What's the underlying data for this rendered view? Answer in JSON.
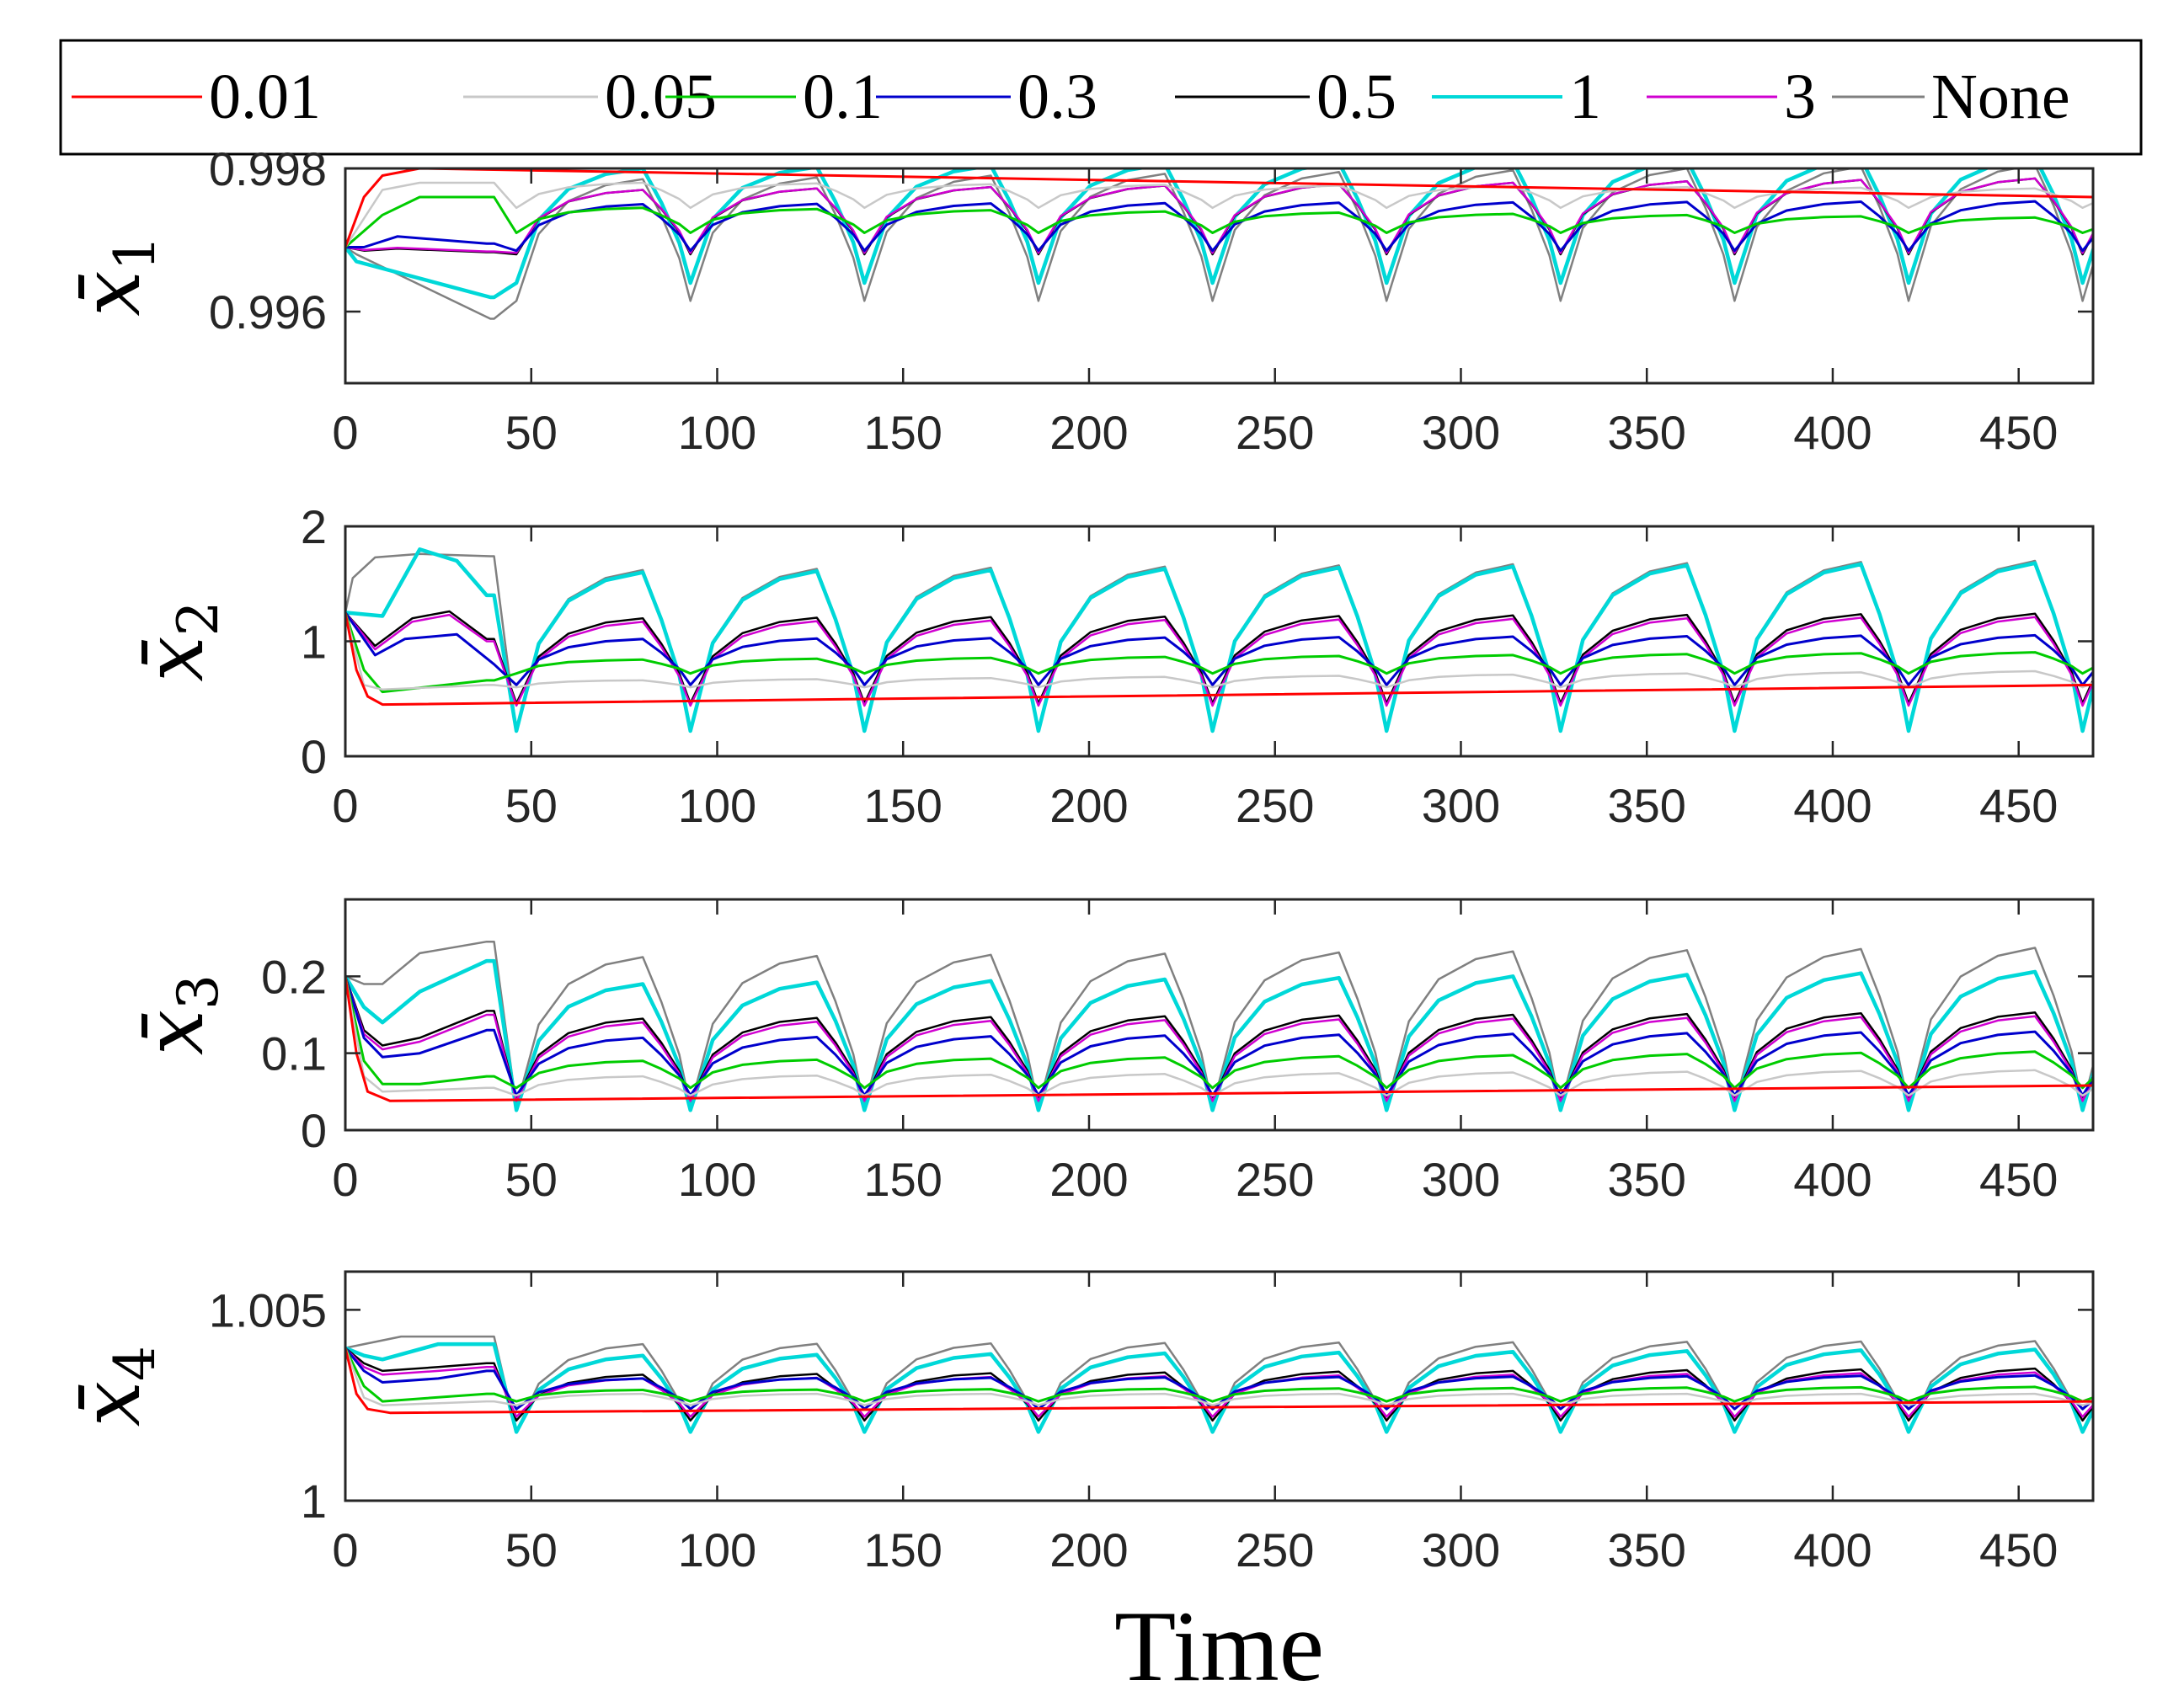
{
  "chart_data": {
    "type": "line",
    "xlabel": "Time",
    "xlim": [
      0,
      470
    ],
    "x_ticks": [
      0,
      50,
      100,
      150,
      200,
      250,
      300,
      350,
      400,
      450
    ],
    "period": 46.8,
    "legend": {
      "placement": "top",
      "entries": [
        {
          "label": "0.01",
          "color": "#ff0000"
        },
        {
          "label": "0.05",
          "color": "#c8c8c8"
        },
        {
          "label": "0.1",
          "color": "#00cc00"
        },
        {
          "label": "0.3",
          "color": "#0000cc"
        },
        {
          "label": "0.5",
          "color": "#000000"
        },
        {
          "label": "1",
          "color": "#00d8d8"
        },
        {
          "label": "3",
          "color": "#d000d0"
        },
        {
          "label": "None",
          "color": "#808080"
        }
      ]
    },
    "subplots": [
      {
        "ylabel": "x̄",
        "ylabel_sub": "1",
        "ylim": [
          0.995,
          0.998
        ],
        "y_ticks": [
          0.996,
          0.998
        ],
        "y_tick_labels": [
          "0.996",
          "0.998"
        ],
        "series": [
          {
            "name": "None",
            "color": "#808080",
            "width": 2.5,
            "initial": 0.9969,
            "transient": {
              "t": [
                3,
                39
              ],
              "y": [
                0.9968,
                0.9959
              ]
            },
            "low": [
              0.99615
            ],
            "high": [
              0.99785,
              0.9981,
              0.9981
            ]
          },
          {
            "name": "1",
            "color": "#00d8d8",
            "width": 4.5,
            "initial": 0.9969,
            "transient": {
              "t": [
                3,
                39
              ],
              "y": [
                0.9967,
                0.9962
              ]
            },
            "low": [
              0.9964
            ],
            "high": [
              0.998,
              0.9982
            ]
          },
          {
            "name": "0.5",
            "color": "#000000",
            "width": 2.5,
            "initial": 0.9969,
            "transient": {
              "t": [
                5,
                14,
                38
              ],
              "y": [
                0.99685,
                0.99688,
                0.99683
              ]
            },
            "low": [
              0.9968
            ],
            "high": [
              0.9977,
              0.9979
            ]
          },
          {
            "name": "3",
            "color": "#d000d0",
            "width": 2.5,
            "initial": 0.9969,
            "transient": {
              "t": [
                5,
                14,
                38
              ],
              "y": [
                0.99686,
                0.99689,
                0.99684
              ]
            },
            "low": [
              0.99682
            ],
            "high": [
              0.9977,
              0.9979
            ]
          },
          {
            "name": "0.3",
            "color": "#0000cc",
            "width": 3,
            "initial": 0.9969,
            "transient": {
              "t": [
                5,
                14,
                38
              ],
              "y": [
                0.9969,
                0.99705,
                0.99695
              ]
            },
            "low": [
              0.99685
            ],
            "high": [
              0.9975,
              0.99755
            ]
          },
          {
            "name": "0.1",
            "color": "#00cc00",
            "width": 3,
            "initial": 0.9969,
            "transient": {
              "t": [
                10,
                20,
                38
              ],
              "y": [
                0.99735,
                0.9976,
                0.9976
              ]
            },
            "low": [
              0.9971
            ],
            "high": [
              0.99745,
              0.99728
            ]
          },
          {
            "name": "0.05",
            "color": "#c8c8c8",
            "width": 2.5,
            "initial": 0.9969,
            "transient": {
              "t": [
                10,
                20,
                38
              ],
              "y": [
                0.9977,
                0.9978,
                0.9978
              ]
            },
            "low": [
              0.99745
            ],
            "high": [
              0.9978,
              0.9977
            ]
          },
          {
            "name": "0.01",
            "color": "#ff0000",
            "width": 3,
            "initial": 0.9969,
            "transient": {
              "t": [
                5,
                10,
                20
              ],
              "y": [
                0.9976,
                0.9979,
                0.998
              ]
            },
            "steady": [
              0.998,
              0.9976
            ]
          }
        ]
      },
      {
        "ylabel": "x̄",
        "ylabel_sub": "2",
        "ylim": [
          0,
          2
        ],
        "y_ticks": [
          0,
          1,
          2
        ],
        "y_tick_labels": [
          "0",
          "1",
          "2"
        ],
        "series": [
          {
            "name": "None",
            "color": "#808080",
            "width": 2.5,
            "initial": 1.25,
            "transient": {
              "t": [
                2,
                8,
                20,
                39
              ],
              "y": [
                1.55,
                1.73,
                1.76,
                1.74
              ]
            },
            "low": [
              0.22
            ],
            "high": [
              1.62,
              1.72
            ]
          },
          {
            "name": "1",
            "color": "#00d8d8",
            "width": 4.5,
            "initial": 1.25,
            "transient": {
              "t": [
                10,
                20,
                30,
                38
              ],
              "y": [
                1.22,
                1.8,
                1.7,
                1.4
              ]
            },
            "low": [
              0.22
            ],
            "high": [
              1.6,
              1.7
            ]
          },
          {
            "name": "0.5",
            "color": "#000000",
            "width": 2.5,
            "initial": 1.25,
            "transient": {
              "t": [
                8,
                18,
                28,
                38
              ],
              "y": [
                0.96,
                1.2,
                1.26,
                1.02
              ]
            },
            "low": [
              0.46
            ],
            "high": [
              1.2,
              1.25
            ]
          },
          {
            "name": "3",
            "color": "#d000d0",
            "width": 2.5,
            "initial": 1.25,
            "transient": {
              "t": [
                8,
                18,
                28,
                38
              ],
              "y": [
                0.93,
                1.17,
                1.23,
                1.0
              ]
            },
            "low": [
              0.44
            ],
            "high": [
              1.17,
              1.22
            ]
          },
          {
            "name": "0.3",
            "color": "#0000cc",
            "width": 3,
            "initial": 1.25,
            "transient": {
              "t": [
                8,
                16,
                30,
                40
              ],
              "y": [
                0.88,
                1.02,
                1.06,
                0.8
              ]
            },
            "low": [
              0.62
            ],
            "high": [
              1.02,
              1.06
            ]
          },
          {
            "name": "0.1",
            "color": "#00cc00",
            "width": 3,
            "initial": 1.25,
            "transient": {
              "t": [
                5,
                10,
                38
              ],
              "y": [
                0.75,
                0.56,
                0.66
              ]
            },
            "low": [
              0.72
            ],
            "high": [
              0.84,
              0.92
            ]
          },
          {
            "name": "0.05",
            "color": "#c8c8c8",
            "width": 2.5,
            "initial": 1.25,
            "transient": {
              "t": [
                5,
                10,
                38
              ],
              "y": [
                0.62,
                0.58,
                0.62
              ]
            },
            "low": [
              0.6
            ],
            "high": [
              0.66,
              0.76
            ]
          },
          {
            "name": "0.01",
            "color": "#ff0000",
            "width": 3,
            "initial": 1.25,
            "transient": {
              "t": [
                3,
                6,
                10
              ],
              "y": [
                0.75,
                0.52,
                0.45
              ]
            },
            "steady": [
              0.45,
              0.62
            ]
          }
        ]
      },
      {
        "ylabel": "x̄",
        "ylabel_sub": "3",
        "ylim": [
          0,
          0.3
        ],
        "y_ticks": [
          0,
          0.1,
          0.2
        ],
        "y_tick_labels": [
          "0",
          "0.1",
          "0.2"
        ],
        "series": [
          {
            "name": "None",
            "color": "#808080",
            "width": 2.5,
            "initial": 0.2,
            "transient": {
              "t": [
                5,
                10,
                20,
                38
              ],
              "y": [
                0.19,
                0.19,
                0.23,
                0.245
              ]
            },
            "low": [
              0.03
            ],
            "high": [
              0.225,
              0.24
            ]
          },
          {
            "name": "1",
            "color": "#00d8d8",
            "width": 4.5,
            "initial": 0.2,
            "transient": {
              "t": [
                5,
                10,
                20,
                38
              ],
              "y": [
                0.16,
                0.14,
                0.18,
                0.22
              ]
            },
            "low": [
              0.026
            ],
            "high": [
              0.19,
              0.21
            ]
          },
          {
            "name": "0.5",
            "color": "#000000",
            "width": 2.5,
            "initial": 0.2,
            "transient": {
              "t": [
                5,
                10,
                20,
                38
              ],
              "y": [
                0.13,
                0.11,
                0.12,
                0.155
              ]
            },
            "low": [
              0.04
            ],
            "high": [
              0.145,
              0.155
            ]
          },
          {
            "name": "3",
            "color": "#d000d0",
            "width": 2.5,
            "initial": 0.2,
            "transient": {
              "t": [
                5,
                10,
                20,
                38
              ],
              "y": [
                0.125,
                0.105,
                0.115,
                0.15
              ]
            },
            "low": [
              0.038
            ],
            "high": [
              0.14,
              0.15
            ]
          },
          {
            "name": "0.3",
            "color": "#0000cc",
            "width": 3,
            "initial": 0.2,
            "transient": {
              "t": [
                5,
                10,
                20,
                38
              ],
              "y": [
                0.12,
                0.095,
                0.1,
                0.13
              ]
            },
            "low": [
              0.045
            ],
            "high": [
              0.12,
              0.13
            ]
          },
          {
            "name": "0.1",
            "color": "#00cc00",
            "width": 3,
            "initial": 0.2,
            "transient": {
              "t": [
                5,
                10,
                20,
                38
              ],
              "y": [
                0.09,
                0.06,
                0.06,
                0.07
              ]
            },
            "low": [
              0.055
            ],
            "high": [
              0.09,
              0.105
            ]
          },
          {
            "name": "0.05",
            "color": "#c8c8c8",
            "width": 2.5,
            "initial": 0.2,
            "transient": {
              "t": [
                5,
                10,
                38
              ],
              "y": [
                0.07,
                0.05,
                0.055
              ]
            },
            "low": [
              0.045
            ],
            "high": [
              0.07,
              0.08
            ]
          },
          {
            "name": "0.01",
            "color": "#ff0000",
            "width": 3,
            "initial": 0.2,
            "transient": {
              "t": [
                3,
                6,
                12
              ],
              "y": [
                0.1,
                0.05,
                0.038
              ]
            },
            "steady": [
              0.038,
              0.058
            ]
          }
        ]
      },
      {
        "ylabel": "x̄",
        "ylabel_sub": "4",
        "ylim": [
          1.0,
          1.006
        ],
        "y_ticks": [
          1.0,
          1.005
        ],
        "y_tick_labels": [
          "1",
          "1.005"
        ],
        "series": [
          {
            "name": "None",
            "color": "#808080",
            "width": 2.5,
            "initial": 1.004,
            "transient": {
              "t": [
                5,
                15,
                38
              ],
              "y": [
                1.0041,
                1.0043,
                1.0043
              ]
            },
            "low": [
              1.0018
            ],
            "high": [
              1.0041,
              1.0042
            ]
          },
          {
            "name": "1",
            "color": "#00d8d8",
            "width": 4.5,
            "initial": 1.004,
            "transient": {
              "t": [
                5,
                10,
                25,
                38
              ],
              "y": [
                1.0038,
                1.0037,
                1.0041,
                1.0041
              ]
            },
            "low": [
              1.0018
            ],
            "high": [
              1.0038,
              1.004
            ]
          },
          {
            "name": "0.5",
            "color": "#000000",
            "width": 2.5,
            "initial": 1.004,
            "transient": {
              "t": [
                5,
                10,
                25,
                38
              ],
              "y": [
                1.0036,
                1.0034,
                1.0035,
                1.0036
              ]
            },
            "low": [
              1.0021
            ],
            "high": [
              1.0033,
              1.0035
            ]
          },
          {
            "name": "3",
            "color": "#d000d0",
            "width": 2.5,
            "initial": 1.004,
            "transient": {
              "t": [
                5,
                10,
                25,
                38
              ],
              "y": [
                1.0035,
                1.0033,
                1.0034,
                1.0035
              ]
            },
            "low": [
              1.0022
            ],
            "high": [
              1.0032,
              1.0034
            ]
          },
          {
            "name": "0.3",
            "color": "#0000cc",
            "width": 3,
            "initial": 1.004,
            "transient": {
              "t": [
                5,
                10,
                25,
                38
              ],
              "y": [
                1.0034,
                1.0031,
                1.0032,
                1.0034
              ]
            },
            "low": [
              1.0024
            ],
            "high": [
              1.0032,
              1.0033
            ]
          },
          {
            "name": "0.1",
            "color": "#00cc00",
            "width": 3,
            "initial": 1.004,
            "transient": {
              "t": [
                5,
                10,
                38
              ],
              "y": [
                1.003,
                1.0026,
                1.0028
              ]
            },
            "low": [
              1.0026
            ],
            "high": [
              1.0029,
              1.003
            ]
          },
          {
            "name": "0.05",
            "color": "#c8c8c8",
            "width": 2.5,
            "initial": 1.004,
            "transient": {
              "t": [
                5,
                10,
                38
              ],
              "y": [
                1.0027,
                1.0025,
                1.0026
              ]
            },
            "low": [
              1.0025
            ],
            "high": [
              1.0028,
              1.0028
            ]
          },
          {
            "name": "0.01",
            "color": "#ff0000",
            "width": 3,
            "initial": 1.004,
            "transient": {
              "t": [
                3,
                6,
                12
              ],
              "y": [
                1.0028,
                1.0024,
                1.0023
              ]
            },
            "steady": [
              1.0023,
              1.0026
            ]
          }
        ]
      }
    ]
  }
}
